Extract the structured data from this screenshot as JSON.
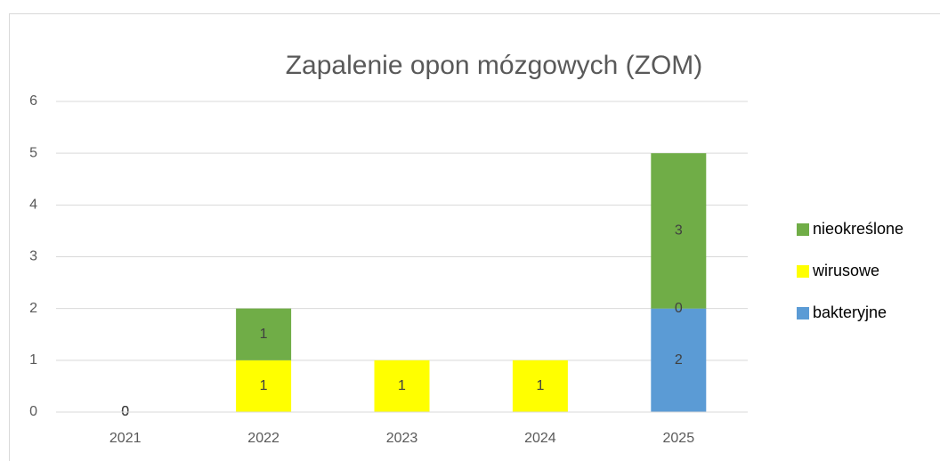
{
  "chart_data": {
    "type": "stacked_bar",
    "title": "Zapalenie opon mózgowych (ZOM)",
    "categories": [
      "2021",
      "2022",
      "2023",
      "2024",
      "2025"
    ],
    "series": [
      {
        "name": "bakteryjne",
        "color": "#5b9bd5",
        "values": [
          0,
          0,
          0,
          0,
          2
        ],
        "value_labels": [
          "0",
          null,
          null,
          null,
          "2"
        ]
      },
      {
        "name": "wirusowe",
        "color": "#ffff00",
        "values": [
          0,
          1,
          1,
          1,
          0
        ],
        "value_labels": [
          "0",
          "1",
          "1",
          "1",
          "0"
        ]
      },
      {
        "name": "nieokreślone",
        "color": "#70ad47",
        "values": [
          0,
          1,
          0,
          0,
          3
        ],
        "value_labels": [
          "0",
          "1",
          null,
          null,
          "3"
        ]
      }
    ],
    "ylim": [
      0,
      6
    ],
    "yticks": [
      0,
      1,
      2,
      3,
      4,
      5,
      6
    ],
    "grid": true,
    "legend": "right"
  }
}
